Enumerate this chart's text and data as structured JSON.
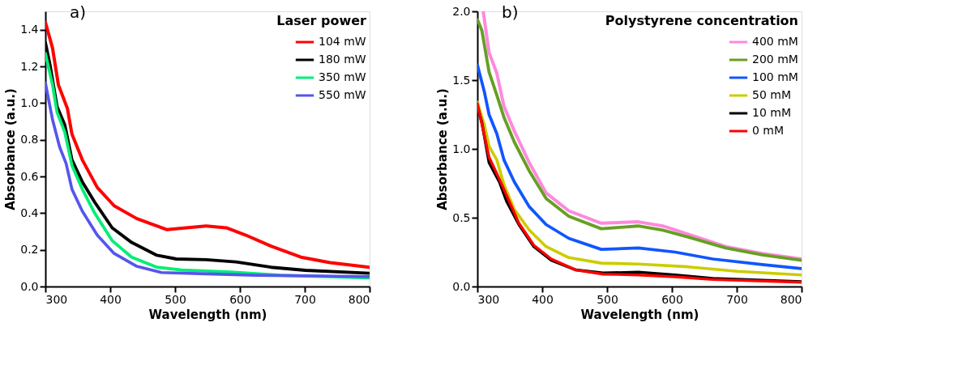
{
  "chart_data": [
    {
      "type": "line",
      "annotations": [
        "a)"
      ],
      "xlabel": "Wavelength (nm)",
      "ylabel": "Absorbance (a.u.)",
      "legend_title": "Laser power",
      "legend": "top right",
      "grid": false,
      "line_style": "solid",
      "xlim": [
        300,
        800
      ],
      "xticks": [
        300,
        400,
        500,
        600,
        700,
        800
      ],
      "ylim": [
        0,
        1.5
      ],
      "yticks": [
        {
          "value": 0,
          "label": "0.0"
        },
        0.2,
        0.4,
        0.6,
        0.8,
        {
          "value": 1,
          "label": "1.0"
        },
        1.2,
        1.4
      ],
      "series": [
        {
          "name": "104 mW",
          "color": "#ff0000",
          "x": [
            300,
            311,
            320,
            334,
            341,
            357,
            380,
            406,
            441,
            487,
            517,
            548,
            579,
            609,
            648,
            694,
            739,
            800
          ],
          "values": [
            1.44,
            1.3,
            1.1,
            0.97,
            0.83,
            0.69,
            0.54,
            0.44,
            0.37,
            0.31,
            0.32,
            0.33,
            0.32,
            0.28,
            0.22,
            0.16,
            0.13,
            0.105
          ]
        },
        {
          "name": "180 mW",
          "color": "#000000",
          "x": [
            300,
            307,
            318,
            330,
            341,
            357,
            376,
            403,
            433,
            472,
            502,
            548,
            594,
            648,
            701,
            800
          ],
          "values": [
            1.33,
            1.21,
            0.98,
            0.88,
            0.69,
            0.57,
            0.46,
            0.32,
            0.24,
            0.17,
            0.15,
            0.146,
            0.134,
            0.105,
            0.088,
            0.072
          ]
        },
        {
          "name": "350 mW",
          "color": "#00ee77",
          "x": [
            300,
            311,
            318,
            330,
            341,
            357,
            376,
            403,
            433,
            472,
            510,
            586,
            663,
            800
          ],
          "values": [
            1.27,
            1.1,
            0.95,
            0.84,
            0.66,
            0.53,
            0.4,
            0.25,
            0.16,
            0.105,
            0.09,
            0.079,
            0.061,
            0.047
          ]
        },
        {
          "name": "550 mW",
          "color": "#5555ee",
          "x": [
            300,
            311,
            322,
            332,
            341,
            357,
            380,
            406,
            441,
            479,
            548,
            625,
            800
          ],
          "values": [
            1.11,
            0.91,
            0.76,
            0.67,
            0.53,
            0.41,
            0.28,
            0.18,
            0.11,
            0.076,
            0.069,
            0.061,
            0.054
          ]
        }
      ]
    },
    {
      "type": "line",
      "annotations": [
        "b)"
      ],
      "xlabel": "Wavelength (nm)",
      "ylabel": "Absorbance (a.u.)",
      "legend_title": "Polystyrene concentration",
      "legend": "top right",
      "grid": false,
      "line_style": "solid",
      "xlim": [
        300,
        800
      ],
      "xticks": [
        300,
        400,
        500,
        600,
        700,
        800
      ],
      "ylim": [
        0,
        2
      ],
      "yticks": [
        {
          "value": 0,
          "label": "0.0"
        },
        0.5,
        {
          "value": 1,
          "label": "1.0"
        },
        1.5,
        {
          "value": 2,
          "label": "2.0"
        }
      ],
      "series": [
        {
          "name": "400 mM",
          "color": "#ff88dd",
          "x": [
            309,
            318,
            330,
            341,
            357,
            380,
            406,
            441,
            491,
            548,
            586,
            625,
            683,
            739,
            800
          ],
          "values": [
            2.0,
            1.7,
            1.55,
            1.31,
            1.13,
            0.9,
            0.68,
            0.55,
            0.46,
            0.47,
            0.44,
            0.38,
            0.29,
            0.24,
            0.2
          ]
        },
        {
          "name": "200 mM",
          "color": "#66a022",
          "x": [
            300,
            307,
            318,
            330,
            341,
            357,
            380,
            406,
            441,
            491,
            548,
            586,
            625,
            683,
            739,
            800
          ],
          "values": [
            1.94,
            1.86,
            1.56,
            1.39,
            1.23,
            1.05,
            0.84,
            0.64,
            0.51,
            0.42,
            0.44,
            0.41,
            0.36,
            0.28,
            0.23,
            0.19
          ]
        },
        {
          "name": "100 mM",
          "color": "#1155ff",
          "x": [
            300,
            311,
            318,
            330,
            341,
            357,
            380,
            406,
            441,
            491,
            548,
            605,
            663,
            739,
            800
          ],
          "values": [
            1.61,
            1.41,
            1.25,
            1.11,
            0.92,
            0.76,
            0.58,
            0.45,
            0.35,
            0.27,
            0.28,
            0.25,
            0.2,
            0.16,
            0.13
          ]
        },
        {
          "name": "50 mM",
          "color": "#cccc00",
          "x": [
            300,
            311,
            318,
            330,
            341,
            357,
            380,
            406,
            441,
            491,
            548,
            625,
            701,
            800
          ],
          "values": [
            1.34,
            1.17,
            1.02,
            0.92,
            0.74,
            0.56,
            0.41,
            0.29,
            0.21,
            0.17,
            0.163,
            0.143,
            0.11,
            0.084
          ]
        },
        {
          "name": "10 mM",
          "color": "#000000",
          "x": [
            300,
            307,
            318,
            334,
            345,
            364,
            387,
            414,
            452,
            494,
            548,
            605,
            663,
            800
          ],
          "values": [
            1.31,
            1.19,
            0.9,
            0.76,
            0.62,
            0.45,
            0.29,
            0.19,
            0.12,
            0.098,
            0.104,
            0.084,
            0.059,
            0.035
          ]
        },
        {
          "name": "0 mM",
          "color": "#ff0000",
          "x": [
            300,
            318,
            334,
            364,
            387,
            414,
            452,
            494,
            548,
            605,
            663,
            800
          ],
          "values": [
            1.33,
            0.94,
            0.78,
            0.46,
            0.3,
            0.2,
            0.12,
            0.09,
            0.084,
            0.071,
            0.051,
            0.031
          ]
        }
      ]
    }
  ]
}
